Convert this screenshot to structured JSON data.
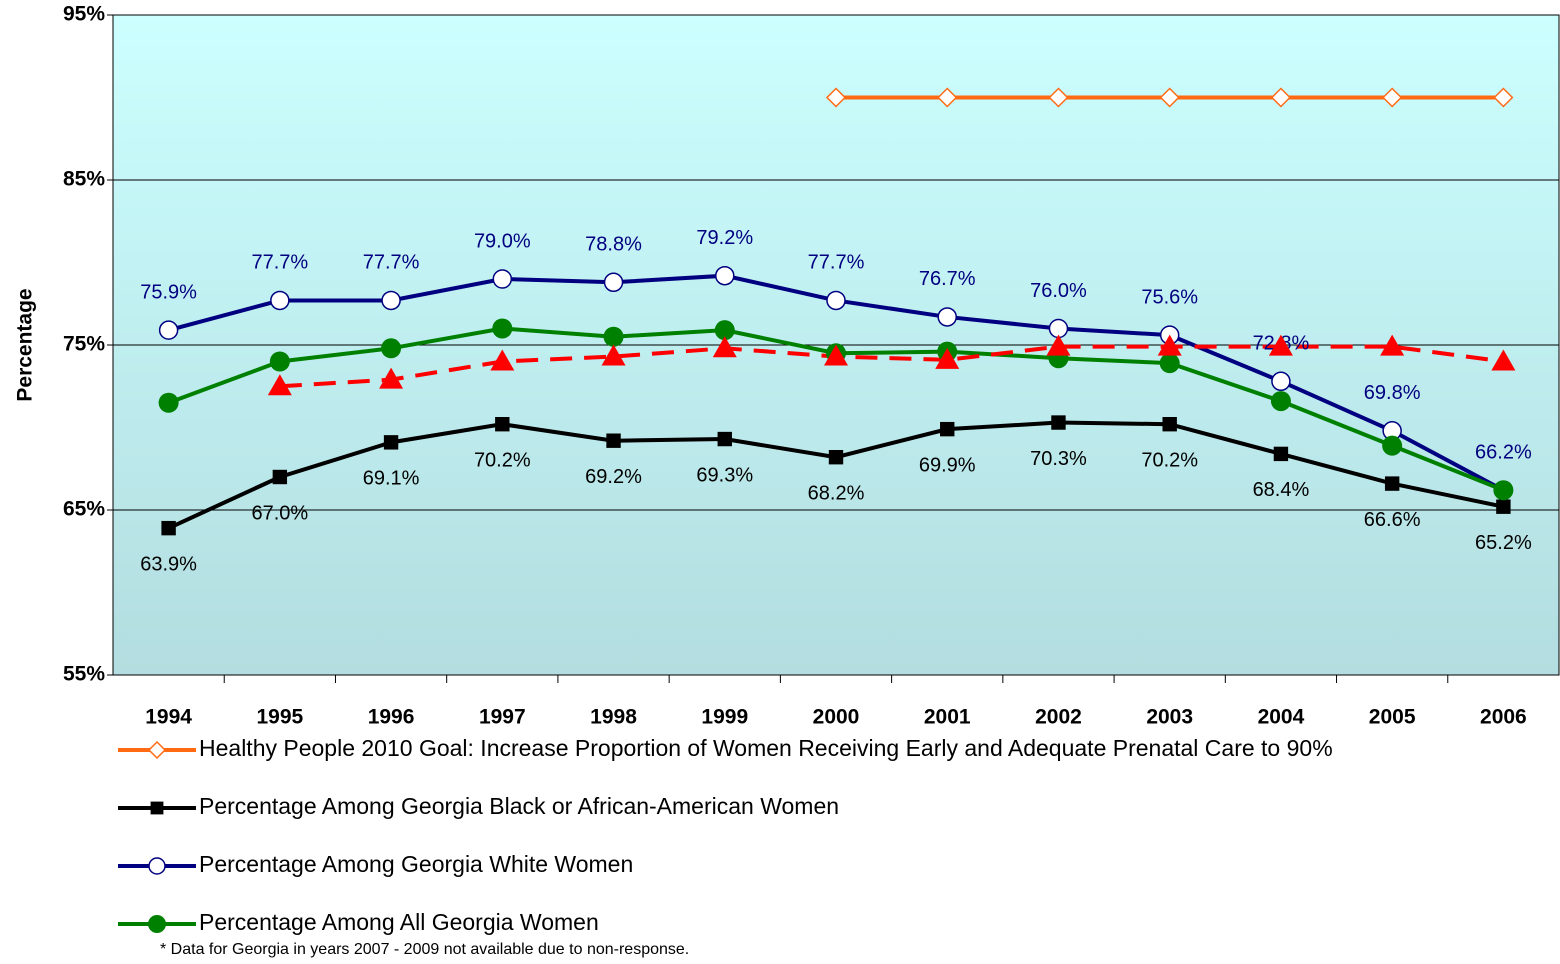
{
  "chart_data": {
    "type": "line",
    "y_label": "Percentage",
    "categories": [
      "1994",
      "1995",
      "1996",
      "1997",
      "1998",
      "1999",
      "2000",
      "2001",
      "2002",
      "2003",
      "2004",
      "2005",
      "2006"
    ],
    "ylim": [
      55,
      95
    ],
    "yticks": [
      {
        "value": 55,
        "label": "55%"
      },
      {
        "value": 65,
        "label": "65%"
      },
      {
        "value": 75,
        "label": "75%"
      },
      {
        "value": 85,
        "label": "85%"
      },
      {
        "value": 95,
        "label": "95%"
      }
    ],
    "grid": true,
    "series": [
      {
        "name": "Healthy People 2010 Goal:  Increase Proportion of Women Receiving Early and Adequate Prenatal Care to 90%",
        "color": "#ff6a13",
        "marker": "diamond",
        "values": [
          null,
          null,
          null,
          null,
          null,
          null,
          90,
          90,
          90,
          90,
          90,
          90,
          90
        ]
      },
      {
        "name": "Percentage Among Georgia Black or African-American Women",
        "color": "#000000",
        "marker": "square",
        "label_side": "below",
        "values": [
          63.9,
          67.0,
          69.1,
          70.2,
          69.2,
          69.3,
          68.2,
          69.9,
          70.3,
          70.2,
          68.4,
          66.6,
          65.2
        ],
        "value_labels": [
          "63.9%",
          "67.0%",
          "69.1%",
          "70.2%",
          "69.2%",
          "69.3%",
          "68.2%",
          "69.9%",
          "70.3%",
          "70.2%",
          "68.4%",
          "66.6%",
          "65.2%"
        ]
      },
      {
        "name": "Percentage Among Georgia White Women",
        "color": "#000080",
        "marker": "circle-open",
        "label_side": "above",
        "values": [
          75.9,
          77.7,
          77.7,
          79.0,
          78.8,
          79.2,
          77.7,
          76.7,
          76.0,
          75.6,
          72.8,
          69.8,
          66.2
        ],
        "value_labels": [
          "75.9%",
          "77.7%",
          "77.7%",
          "79.0%",
          "78.8%",
          "79.2%",
          "77.7%",
          "76.7%",
          "76.0%",
          "75.6%",
          "72.8%",
          "69.8%",
          "66.2%"
        ]
      },
      {
        "name": "Percentage Among All Georgia Women",
        "color": "#008000",
        "marker": "circle",
        "values": [
          71.5,
          74.0,
          74.8,
          76.0,
          75.5,
          75.9,
          74.5,
          74.6,
          74.2,
          73.9,
          71.6,
          68.9,
          66.2
        ]
      },
      {
        "color": "#ff0000",
        "marker": "triangle",
        "dashed": true,
        "values": [
          null,
          72.5,
          72.9,
          74.0,
          74.3,
          74.8,
          74.3,
          74.1,
          74.9,
          74.9,
          74.9,
          74.9,
          74.0
        ]
      }
    ],
    "footnote": "* Data for Georgia in years 2007 - 2009 not available due to non-response."
  }
}
